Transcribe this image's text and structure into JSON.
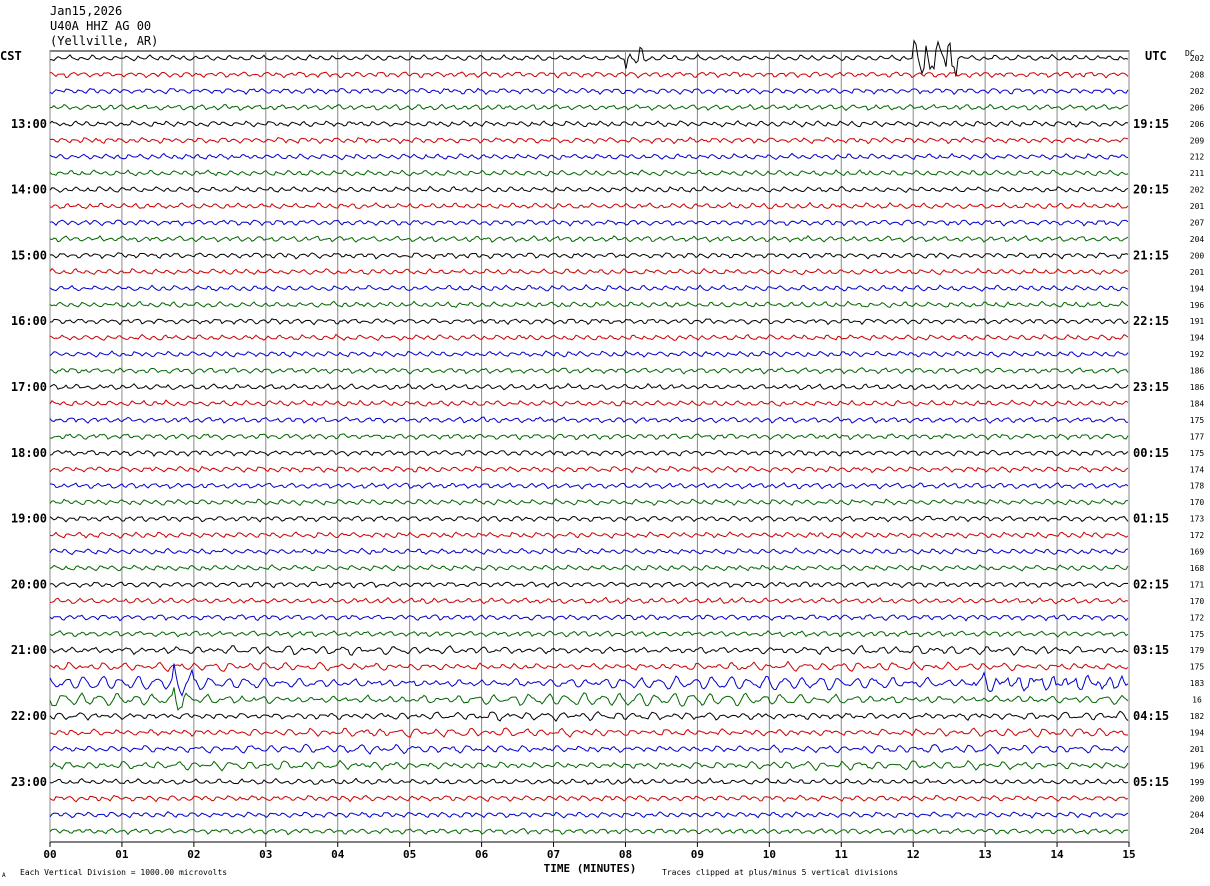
{
  "header": {
    "date": "Jan15,2026",
    "station": "U40A HHZ AG 00",
    "location": "(Yellville, AR)"
  },
  "labels": {
    "left_zone": "CST",
    "right_zone": "UTC",
    "dc_label": "DC",
    "xlabel": "TIME (MINUTES)",
    "scale_note": "Each Vertical Division = 1000.00 microvolts",
    "clip_note": "Traces clipped at plus/minus 5 vertical divisions",
    "corner_mark": "A"
  },
  "chart_data": {
    "type": "line",
    "title": "",
    "xlabel": "TIME (MINUTES)",
    "ylabel": "",
    "x_ticks": [
      "00",
      "01",
      "02",
      "03",
      "04",
      "05",
      "06",
      "07",
      "08",
      "09",
      "10",
      "11",
      "12",
      "13",
      "14",
      "15"
    ],
    "xlim": [
      0,
      15
    ],
    "left_time_labels": [
      "13:00",
      "14:00",
      "15:00",
      "16:00",
      "17:00",
      "18:00",
      "19:00",
      "20:00",
      "21:00",
      "22:00",
      "23:00"
    ],
    "right_time_labels": [
      "19:15",
      "20:15",
      "21:15",
      "22:15",
      "23:15",
      "00:15",
      "01:15",
      "02:15",
      "03:15",
      "04:15",
      "05:15"
    ],
    "dc_offsets": [
      "202",
      "208",
      "202",
      "206",
      "206",
      "209",
      "212",
      "211",
      "202",
      "201",
      "207",
      "204",
      "200",
      "201",
      "194",
      "196",
      "191",
      "194",
      "192",
      "186",
      "186",
      "184",
      "175",
      "177",
      "175",
      "174",
      "178",
      "170",
      "173",
      "172",
      "169",
      "168",
      "171",
      "170",
      "172",
      "175",
      "179",
      "175",
      "183",
      "16",
      "182",
      "194",
      "201",
      "196",
      "199",
      "200",
      "204",
      "204"
    ],
    "trace_colors": [
      "#000000",
      "#cc0000",
      "#0000cc",
      "#006600"
    ],
    "grid": "vertical minute lines",
    "events": [
      {
        "trace": 0,
        "minute_start": 8.0,
        "minute_end": 8.3,
        "amp": 0.3
      },
      {
        "trace": 0,
        "minute_start": 12.0,
        "minute_end": 12.6,
        "amp": 0.6
      }
    ]
  }
}
